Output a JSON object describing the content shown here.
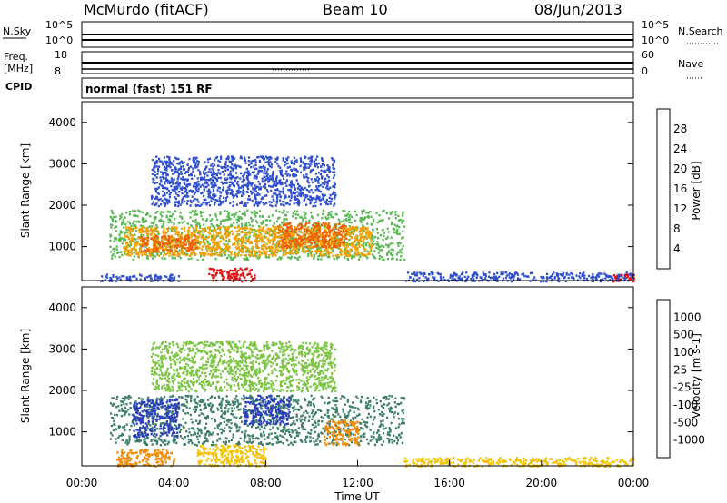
{
  "header": {
    "station": "McMurdo (fitACF)",
    "beam": "Beam 10",
    "date": "08/Jun/2013"
  },
  "strip_panels": {
    "noise": {
      "left_label": "N.Sky",
      "right_label": "N.Search",
      "left_ticks": [
        "10^5",
        "10^0"
      ],
      "right_ticks": [
        "10^5",
        "10^0"
      ]
    },
    "freq": {
      "left_label": "Freq.",
      "left_unit": "[MHz]",
      "right_label": "Nave",
      "left_ticks": [
        "18",
        "8"
      ],
      "right_ticks": [
        "60",
        "0"
      ]
    },
    "cpid": {
      "label": "CPID",
      "text": "normal (fast) 151 RF"
    }
  },
  "chart_data": [
    {
      "type": "heatmap",
      "title": "Power",
      "ylabel": "Slant Range [km]",
      "xlabel": "Time UT",
      "xlim": [
        0,
        24
      ],
      "ylim": [
        180,
        4500
      ],
      "y_ticks": [
        "1000",
        "2000",
        "3000",
        "4000"
      ],
      "colorbar": {
        "label": "Power [dB]",
        "ticks": [
          "4",
          "8",
          "12",
          "16",
          "20",
          "24",
          "28"
        ],
        "levels": [
          {
            "range": "<4",
            "color": "#0000dd"
          },
          {
            "range": "4-8",
            "color": "#2f4fd0"
          },
          {
            "range": "8-12",
            "color": "#3f8f7f"
          },
          {
            "range": "12-16",
            "color": "#5ab854"
          },
          {
            "range": "16-20",
            "color": "#f2e000"
          },
          {
            "range": "20-24",
            "color": "#f5a000"
          },
          {
            "range": "24-28",
            "color": "#f06000"
          },
          {
            "range": ">28",
            "color": "#e01010"
          }
        ]
      },
      "regions": [
        {
          "t": [
            0.8,
            4.2
          ],
          "r": [
            180,
            350
          ],
          "level": 1
        },
        {
          "t": [
            1.2,
            14.0
          ],
          "r": [
            700,
            1900
          ],
          "level": 3
        },
        {
          "t": [
            1.8,
            12.6
          ],
          "r": [
            800,
            1500
          ],
          "level": 5
        },
        {
          "t": [
            5.5,
            7.5
          ],
          "r": [
            180,
            500
          ],
          "level": 7
        },
        {
          "t": [
            2.5,
            5.0
          ],
          "r": [
            900,
            1300
          ],
          "level": 6
        },
        {
          "t": [
            8.5,
            11.5
          ],
          "r": [
            1000,
            1600
          ],
          "level": 6
        },
        {
          "t": [
            3.0,
            11.0
          ],
          "r": [
            2000,
            3200
          ],
          "level": 1
        },
        {
          "t": [
            14.0,
            24.0
          ],
          "r": [
            180,
            400
          ],
          "level": 1
        },
        {
          "t": [
            23.0,
            24.0
          ],
          "r": [
            180,
            350
          ],
          "level": 7
        }
      ]
    },
    {
      "type": "heatmap",
      "title": "Velocity",
      "ylabel": "Slant Range [km]",
      "xlabel": "Time UT",
      "xlim": [
        0,
        24
      ],
      "ylim": [
        180,
        4500
      ],
      "y_ticks": [
        "1000",
        "2000",
        "3000",
        "4000"
      ],
      "x_ticks": [
        "00:00",
        "04:00",
        "08:00",
        "12:00",
        "16:00",
        "20:00",
        "00:00"
      ],
      "colorbar": {
        "label": "Velocity [m s-1]",
        "ticks": [
          "1000",
          "500",
          "100",
          "25",
          "-25",
          "-100",
          "-500",
          "-1000"
        ],
        "levels": [
          {
            "range": ">1000",
            "color": "#2a3fbf"
          },
          {
            "range": "500-1000",
            "color": "#3c7d6a"
          },
          {
            "range": "100-500",
            "color": "#4f9b5a"
          },
          {
            "range": "25-100",
            "color": "#7cc443"
          },
          {
            "range": "-25-25",
            "color": "#b5b5b5"
          },
          {
            "range": "-100--25",
            "color": "#f5c200"
          },
          {
            "range": "-500--100",
            "color": "#f58a00"
          },
          {
            "range": "-1000--500",
            "color": "#f25a10"
          },
          {
            "range": "<-1000",
            "color": "#e01010"
          }
        ]
      },
      "regions": [
        {
          "t": [
            1.2,
            14.0
          ],
          "r": [
            700,
            1900
          ],
          "level": 1
        },
        {
          "t": [
            2.2,
            4.2
          ],
          "r": [
            900,
            1800
          ],
          "level": 0
        },
        {
          "t": [
            7.0,
            9.0
          ],
          "r": [
            1200,
            1900
          ],
          "level": 0
        },
        {
          "t": [
            1.5,
            4.0
          ],
          "r": [
            180,
            600
          ],
          "level": 6
        },
        {
          "t": [
            5.0,
            8.0
          ],
          "r": [
            180,
            700
          ],
          "level": 5
        },
        {
          "t": [
            10.5,
            12.0
          ],
          "r": [
            700,
            1300
          ],
          "level": 6
        },
        {
          "t": [
            3.0,
            11.0
          ],
          "r": [
            2000,
            3200
          ],
          "level": 3
        },
        {
          "t": [
            14.0,
            24.0
          ],
          "r": [
            180,
            400
          ],
          "level": 5
        }
      ]
    }
  ]
}
